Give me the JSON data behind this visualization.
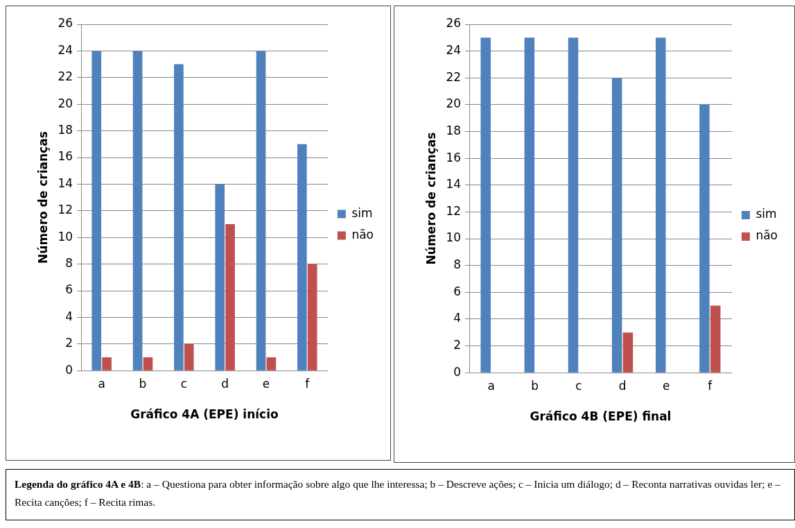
{
  "chart_data": [
    {
      "type": "bar",
      "xlabel": "Gráfico 4A (EPE) início",
      "ylabel": "Número de crianças",
      "categories": [
        "a",
        "b",
        "c",
        "d",
        "e",
        "f"
      ],
      "series": [
        {
          "name": "sim",
          "color": "#4f81bd",
          "values": [
            24,
            24,
            23,
            14,
            24,
            17
          ]
        },
        {
          "name": "não",
          "color": "#c0504d",
          "values": [
            1,
            1,
            2,
            11,
            1,
            8
          ]
        }
      ],
      "ylim": [
        0,
        26
      ],
      "yticks": [
        0,
        2,
        4,
        6,
        8,
        10,
        12,
        14,
        16,
        18,
        20,
        22,
        24,
        26
      ],
      "grid": "y",
      "legend": "right",
      "annotations": [
        "Legenda do gráfico 4A e 4B: a – Questiona para obter informação sobre algo que lhe interessa; b – Descreve ações; c – Inicia um diálogo; d – Reconta narrativas ouvidas ler; e – Recita canções; f – Recita rimas."
      ]
    },
    {
      "type": "bar",
      "xlabel": "Gráfico 4B (EPE) final",
      "ylabel": "Número de crianças",
      "categories": [
        "a",
        "b",
        "c",
        "d",
        "e",
        "f"
      ],
      "series": [
        {
          "name": "sim",
          "color": "#4f81bd",
          "values": [
            25,
            25,
            25,
            22,
            25,
            20
          ]
        },
        {
          "name": "não",
          "color": "#c0504d",
          "values": [
            0,
            0,
            0,
            3,
            0,
            5
          ]
        }
      ],
      "ylim": [
        0,
        26
      ],
      "yticks": [
        0,
        2,
        4,
        6,
        8,
        10,
        12,
        14,
        16,
        18,
        20,
        22,
        24,
        26
      ],
      "grid": "y",
      "legend": "right"
    }
  ]
}
